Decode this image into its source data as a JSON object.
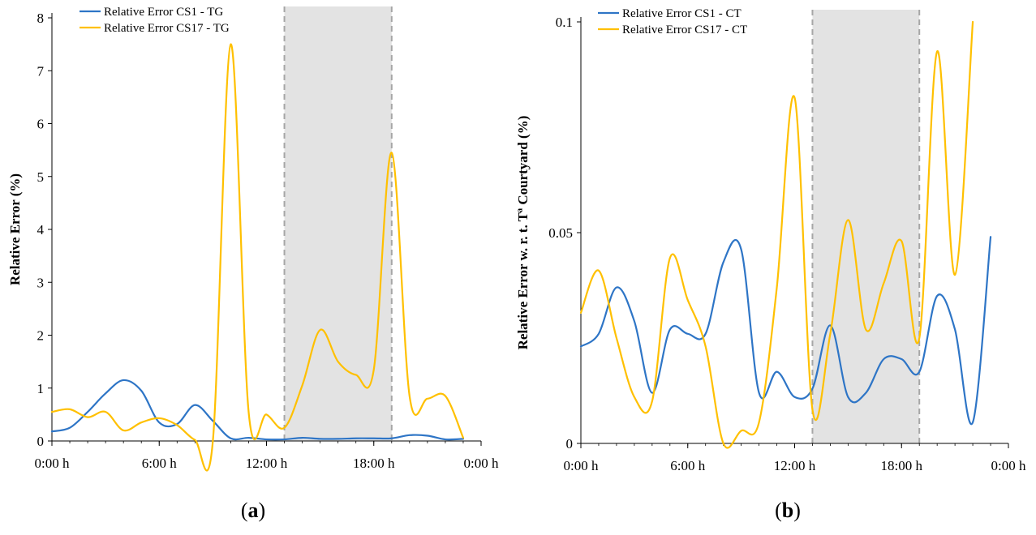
{
  "chart_data": [
    {
      "type": "line",
      "panel_label": "a",
      "caption": [
        "(",
        "a",
        ")"
      ],
      "xlabel": "",
      "ylabel": "Relative Error (%)",
      "xlim": [
        0,
        24
      ],
      "ylim": [
        0,
        8
      ],
      "x_ticks": [
        0,
        6,
        12,
        18,
        24
      ],
      "x_tick_labels": [
        "0:00 h",
        "6:00 h",
        "12:00 h",
        "18:00 h",
        "0:00 h"
      ],
      "y_ticks": [
        0,
        1,
        2,
        3,
        4,
        5,
        6,
        7,
        8
      ],
      "y_tick_labels": [
        "0",
        "1",
        "2",
        "3",
        "4",
        "5",
        "6",
        "7",
        "8"
      ],
      "shaded_band": [
        13,
        19
      ],
      "legend": "top-left",
      "series": [
        {
          "name": "Relative Error CS1 - TG",
          "color": "#2e75c6",
          "x": [
            0,
            1,
            2,
            3,
            4,
            5,
            6,
            7,
            8,
            9,
            10,
            11,
            12,
            13,
            14,
            15,
            16,
            17,
            18,
            19,
            20,
            21,
            22,
            23
          ],
          "y": [
            0.18,
            0.25,
            0.55,
            0.9,
            1.15,
            0.95,
            0.35,
            0.32,
            0.68,
            0.38,
            0.05,
            0.06,
            0.03,
            0.03,
            0.06,
            0.04,
            0.04,
            0.05,
            0.05,
            0.05,
            0.11,
            0.1,
            0.03,
            0.04
          ]
        },
        {
          "name": "Relative Error CS17 - TG",
          "color": "#ffc000",
          "x": [
            0,
            1,
            2,
            3,
            4,
            5,
            6,
            7,
            8,
            9,
            10,
            11,
            12,
            13,
            14,
            15,
            16,
            17,
            18,
            19,
            20,
            21,
            22,
            23
          ],
          "y": [
            0.55,
            0.6,
            0.45,
            0.55,
            0.2,
            0.35,
            0.43,
            0.3,
            0.02,
            0.0,
            7.5,
            0.55,
            0.5,
            0.25,
            1.05,
            2.1,
            1.5,
            1.25,
            1.35,
            5.45,
            0.85,
            0.8,
            0.85,
            0.06
          ]
        }
      ]
    },
    {
      "type": "line",
      "panel_label": "b",
      "caption": [
        "(",
        "b",
        ")"
      ],
      "xlabel": "",
      "ylabel": "Relative Error w. r. t. Tª Courtyard (%)",
      "xlim": [
        0,
        24
      ],
      "ylim": [
        0,
        0.1
      ],
      "x_ticks": [
        0,
        6,
        12,
        18,
        24
      ],
      "x_tick_labels": [
        "0:00 h",
        "6:00 h",
        "12:00 h",
        "18:00 h",
        "0:00 h"
      ],
      "y_ticks": [
        0,
        0.05,
        0.1
      ],
      "y_tick_labels": [
        "0",
        "0.05",
        "0.1"
      ],
      "shaded_band": [
        13,
        19
      ],
      "legend": "top-left",
      "series": [
        {
          "name": "Relative Error CS1 - CT",
          "color": "#2e75c6",
          "x": [
            0,
            1,
            2,
            3,
            4,
            5,
            6,
            7,
            8,
            9,
            10,
            11,
            12,
            13,
            14,
            15,
            16,
            17,
            18,
            19,
            20,
            21,
            22,
            23
          ],
          "y": [
            0.023,
            0.026,
            0.037,
            0.029,
            0.012,
            0.027,
            0.026,
            0.026,
            0.043,
            0.046,
            0.012,
            0.017,
            0.011,
            0.013,
            0.028,
            0.011,
            0.012,
            0.02,
            0.02,
            0.017,
            0.035,
            0.027,
            0.005,
            0.049
          ]
        },
        {
          "name": "Relative Error CS17 - CT",
          "color": "#ffc000",
          "x": [
            0,
            1,
            2,
            3,
            4,
            5,
            6,
            7,
            8,
            9,
            10,
            11,
            12,
            13,
            14,
            15,
            16,
            17,
            18,
            19,
            20,
            21,
            22
          ],
          "y": [
            0.031,
            0.041,
            0.025,
            0.011,
            0.01,
            0.044,
            0.034,
            0.023,
            0.0,
            0.003,
            0.005,
            0.037,
            0.082,
            0.008,
            0.026,
            0.053,
            0.027,
            0.038,
            0.048,
            0.025,
            0.093,
            0.04,
            0.1
          ]
        }
      ]
    }
  ]
}
